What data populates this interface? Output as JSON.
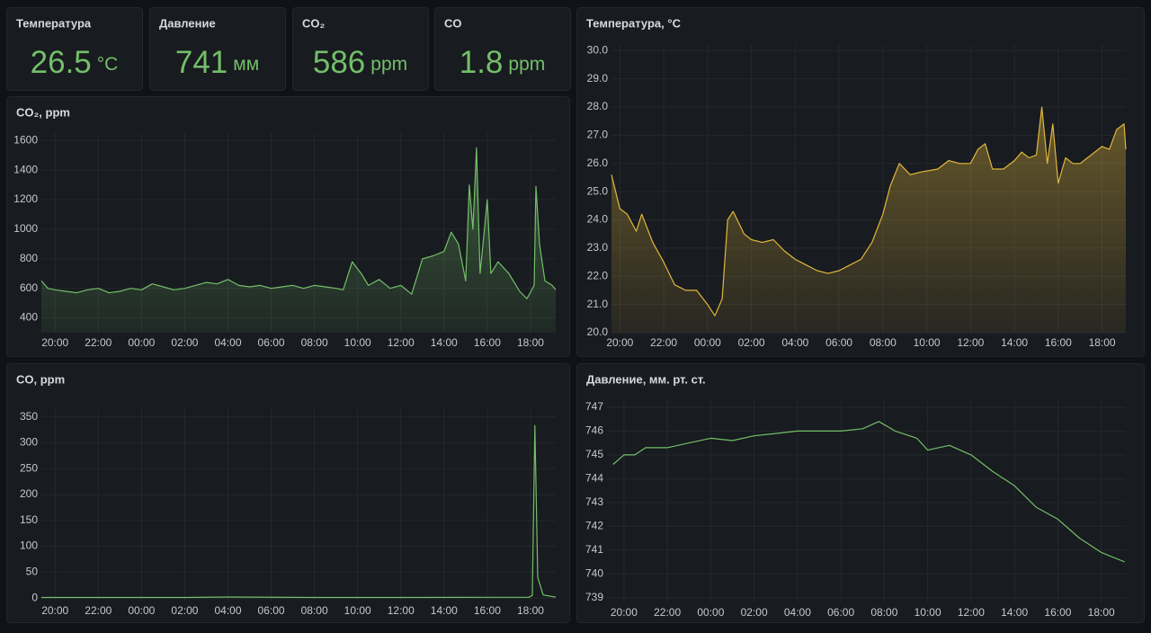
{
  "stats": [
    {
      "title": "Температура",
      "value": 26.5,
      "unit": "°C"
    },
    {
      "title": "Давление",
      "value": 741,
      "unit": "мм"
    },
    {
      "title": "CO₂",
      "value": 586,
      "unit": "ppm"
    },
    {
      "title": "CO",
      "value": 1.8,
      "unit": "ppm"
    }
  ],
  "chart_data": [
    {
      "type": "line",
      "title": "CO₂, ppm",
      "color": "#73bf69",
      "fill": true,
      "grid": true,
      "xlim": [
        "19:22",
        "19:10"
      ],
      "ylim": [
        300,
        1650
      ],
      "xticks": [
        "20:00",
        "22:00",
        "00:00",
        "02:00",
        "04:00",
        "06:00",
        "08:00",
        "10:00",
        "12:00",
        "14:00",
        "16:00",
        "18:00"
      ],
      "yticks": [
        400,
        600,
        800,
        1000,
        1200,
        1400,
        1600
      ],
      "x": [
        "19:22",
        "19:40",
        "20:00",
        "20:30",
        "21:00",
        "21:30",
        "22:00",
        "22:30",
        "23:00",
        "23:30",
        "00:00",
        "00:30",
        "01:00",
        "01:30",
        "02:00",
        "02:30",
        "03:00",
        "03:30",
        "04:00",
        "04:30",
        "05:00",
        "05:30",
        "06:00",
        "06:30",
        "07:00",
        "07:30",
        "08:00",
        "08:30",
        "09:00",
        "09:20",
        "09:45",
        "10:10",
        "10:30",
        "11:00",
        "11:30",
        "12:00",
        "12:30",
        "13:00",
        "13:30",
        "14:00",
        "14:20",
        "14:40",
        "15:00",
        "15:10",
        "15:20",
        "15:30",
        "15:40",
        "16:00",
        "16:10",
        "16:30",
        "17:00",
        "17:30",
        "17:50",
        "18:10",
        "18:15",
        "18:25",
        "18:40",
        "19:00",
        "19:10"
      ],
      "values": [
        650,
        600,
        590,
        580,
        570,
        590,
        600,
        570,
        580,
        600,
        590,
        630,
        610,
        590,
        600,
        620,
        640,
        630,
        660,
        620,
        610,
        620,
        600,
        610,
        620,
        600,
        620,
        610,
        600,
        590,
        780,
        700,
        620,
        660,
        600,
        620,
        560,
        800,
        820,
        850,
        980,
        900,
        650,
        1300,
        1000,
        1550,
        700,
        1200,
        700,
        780,
        700,
        580,
        530,
        620,
        1290,
        900,
        650,
        620,
        590
      ]
    },
    {
      "type": "line",
      "title": "Температура, °C",
      "color": "#e0b73c",
      "fill": true,
      "grid": true,
      "xlim": [
        "19:37",
        "19:05"
      ],
      "ylim": [
        20,
        30.2
      ],
      "xticks": [
        "20:00",
        "22:00",
        "00:00",
        "02:00",
        "04:00",
        "06:00",
        "08:00",
        "10:00",
        "12:00",
        "14:00",
        "16:00",
        "18:00"
      ],
      "yticks": [
        {
          "value": 20,
          "label": "20.0"
        },
        {
          "value": 21,
          "label": "21.0"
        },
        {
          "value": 22,
          "label": "22.0"
        },
        {
          "value": 23,
          "label": "23.0"
        },
        {
          "value": 24,
          "label": "24.0"
        },
        {
          "value": 25,
          "label": "25.0"
        },
        {
          "value": 26,
          "label": "26.0"
        },
        {
          "value": 27,
          "label": "27.0"
        },
        {
          "value": 28,
          "label": "28.0"
        },
        {
          "value": 29,
          "label": "29.0"
        },
        {
          "value": 30,
          "label": "30.0"
        }
      ],
      "x": [
        "19:37",
        "20:00",
        "20:20",
        "20:45",
        "21:00",
        "21:30",
        "22:00",
        "22:30",
        "23:00",
        "23:30",
        "00:00",
        "00:20",
        "00:40",
        "00:55",
        "01:10",
        "01:40",
        "02:00",
        "02:30",
        "03:00",
        "03:30",
        "04:00",
        "04:30",
        "05:00",
        "05:30",
        "06:00",
        "06:30",
        "07:00",
        "07:30",
        "08:00",
        "08:20",
        "08:45",
        "09:15",
        "09:45",
        "10:30",
        "11:00",
        "11:30",
        "12:00",
        "12:20",
        "12:40",
        "13:00",
        "13:30",
        "14:00",
        "14:20",
        "14:40",
        "15:00",
        "15:15",
        "15:30",
        "15:45",
        "16:00",
        "16:20",
        "16:40",
        "17:00",
        "17:30",
        "18:00",
        "18:20",
        "18:40",
        "19:00",
        "19:05"
      ],
      "values": [
        25.6,
        24.4,
        24.2,
        23.6,
        24.2,
        23.2,
        22.5,
        21.7,
        21.5,
        21.5,
        21.0,
        20.6,
        21.2,
        24.0,
        24.3,
        23.5,
        23.3,
        23.2,
        23.3,
        22.9,
        22.6,
        22.4,
        22.2,
        22.1,
        22.2,
        22.4,
        22.6,
        23.2,
        24.2,
        25.2,
        26.0,
        25.6,
        25.7,
        25.8,
        26.1,
        26.0,
        26.0,
        26.5,
        26.7,
        25.8,
        25.8,
        26.1,
        26.4,
        26.2,
        26.3,
        28.0,
        26.0,
        27.4,
        25.3,
        26.2,
        26.0,
        26.0,
        26.3,
        26.6,
        26.5,
        27.2,
        27.4,
        26.5
      ]
    },
    {
      "type": "line",
      "title": "CO, ppm",
      "color": "#73bf69",
      "fill": false,
      "grid": true,
      "xlim": [
        "19:22",
        "19:10"
      ],
      "ylim": [
        -5,
        365
      ],
      "xticks": [
        "20:00",
        "22:00",
        "00:00",
        "02:00",
        "04:00",
        "06:00",
        "08:00",
        "10:00",
        "12:00",
        "14:00",
        "16:00",
        "18:00"
      ],
      "yticks": [
        0,
        50,
        100,
        150,
        200,
        250,
        300,
        350
      ],
      "x": [
        "19:22",
        "22:00",
        "02:00",
        "04:00",
        "08:00",
        "12:00",
        "16:00",
        "17:55",
        "18:05",
        "18:12",
        "18:20",
        "18:35",
        "19:10"
      ],
      "values": [
        1,
        1,
        1,
        2,
        1,
        1,
        1.5,
        1.5,
        5,
        333,
        40,
        6,
        1.8
      ]
    },
    {
      "type": "line",
      "title": "Давление, мм. рт. ст.",
      "color": "#73bf69",
      "fill": false,
      "grid": true,
      "xlim": [
        "19:13",
        "19:08"
      ],
      "ylim": [
        738.8,
        747.3
      ],
      "xticks": [
        "20:00",
        "22:00",
        "00:00",
        "02:00",
        "04:00",
        "06:00",
        "08:00",
        "10:00",
        "12:00",
        "14:00",
        "16:00",
        "18:00"
      ],
      "yticks": [
        739,
        740,
        741,
        742,
        743,
        744,
        745,
        746,
        747
      ],
      "x": [
        "19:30",
        "20:00",
        "20:30",
        "21:00",
        "22:00",
        "23:00",
        "00:00",
        "01:00",
        "02:00",
        "03:00",
        "04:00",
        "05:00",
        "06:00",
        "07:00",
        "07:45",
        "08:30",
        "09:30",
        "10:00",
        "11:00",
        "12:00",
        "13:00",
        "14:00",
        "15:00",
        "16:00",
        "17:00",
        "18:00",
        "19:05"
      ],
      "values": [
        744.6,
        745.0,
        745.0,
        745.3,
        745.3,
        745.5,
        745.7,
        745.6,
        745.8,
        745.9,
        746.0,
        746.0,
        746.0,
        746.1,
        746.4,
        746.0,
        745.7,
        745.2,
        745.4,
        745.0,
        744.3,
        743.7,
        742.8,
        742.3,
        741.5,
        740.9,
        740.5
      ]
    }
  ]
}
